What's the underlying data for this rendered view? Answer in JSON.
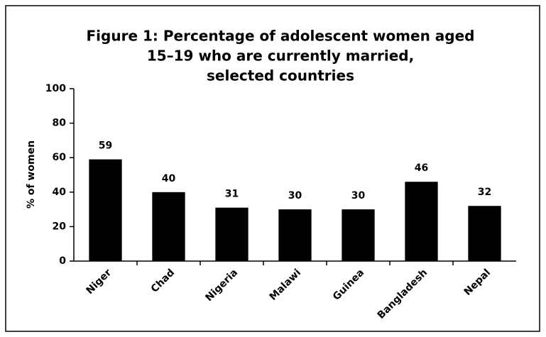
{
  "chart_data": {
    "type": "bar",
    "title": [
      "Figure 1: Percentage of adolescent women aged",
      "15–19 who are currently married,",
      "selected countries"
    ],
    "y_label": "% of women",
    "categories": [
      "Niger",
      "Chad",
      "Nigeria",
      "Malawi",
      "Guinea",
      "Bangladesh",
      "Nepal"
    ],
    "values": [
      59,
      40,
      31,
      30,
      30,
      46,
      32
    ],
    "color": "#000000",
    "ylim": [
      0,
      100
    ],
    "yticks": [
      0,
      20,
      40,
      60,
      80,
      100
    ],
    "grid": false
  }
}
